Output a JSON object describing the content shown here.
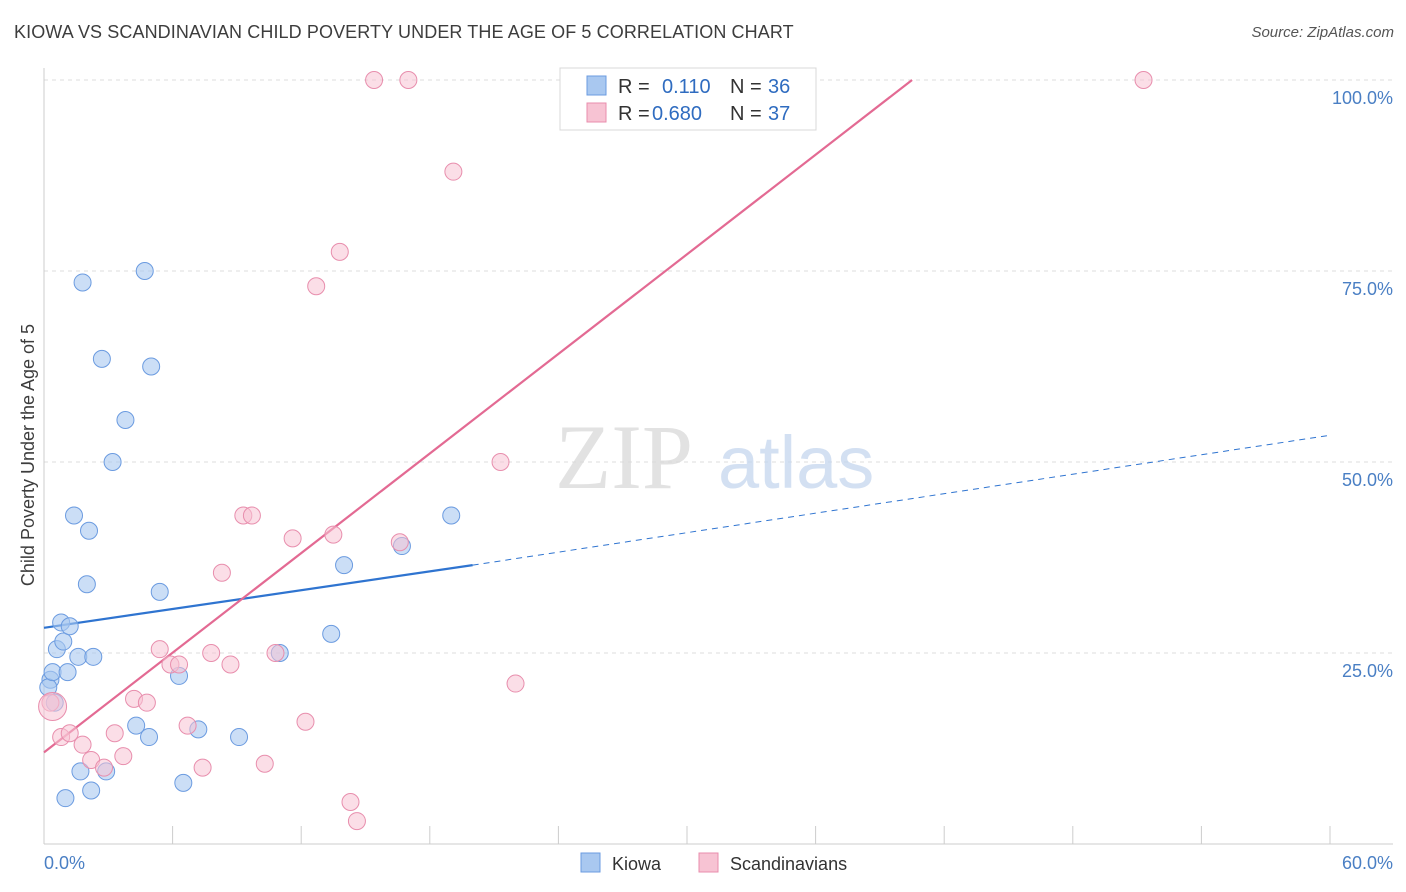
{
  "header": {
    "title": "KIOWA VS SCANDINAVIAN CHILD POVERTY UNDER THE AGE OF 5 CORRELATION CHART",
    "source": "Source: ZipAtlas.com"
  },
  "watermark": {
    "zip": "ZIP",
    "atlas": "atlas"
  },
  "colors": {
    "kiowa_fill": "#a9c8f0",
    "kiowa_stroke": "#6b9be0",
    "kiowa_line": "#2f74d0",
    "scand_fill": "#f7c3d3",
    "scand_stroke": "#e88ead",
    "scand_line": "#e36a93",
    "grid": "#dcdcdc",
    "axis_text": "#4a7fc4"
  },
  "legend": {
    "rows": [
      {
        "r_label": "R =",
        "r_value": "0.110",
        "n_label": "N =",
        "n_value": "36"
      },
      {
        "r_label": "R =",
        "r_value": "0.680",
        "n_label": "N =",
        "n_value": "37"
      }
    ]
  },
  "chart_data": {
    "type": "scatter",
    "title": "KIOWA VS SCANDINAVIAN CHILD POVERTY UNDER THE AGE OF 5 CORRELATION CHART",
    "xlabel": "",
    "ylabel": "Child Poverty Under the Age of 5",
    "xlim": [
      0,
      60
    ],
    "ylim": [
      0,
      100
    ],
    "x_tick_labels": [
      "0.0%",
      "60.0%"
    ],
    "y_tick_labels": [
      "100.0%",
      "75.0%",
      "50.0%",
      "25.0%"
    ],
    "y_tick_values": [
      100,
      75,
      50,
      25
    ],
    "grid": true,
    "legend_position": "bottom-center",
    "series": [
      {
        "name": "Kiowa",
        "r": 0.11,
        "n": 36,
        "points": [
          [
            0.3,
            21.5
          ],
          [
            0.2,
            20.5
          ],
          [
            0.4,
            22.5
          ],
          [
            0.5,
            18.5
          ],
          [
            0.6,
            25.5
          ],
          [
            0.8,
            29
          ],
          [
            0.9,
            26.5
          ],
          [
            1.1,
            22.5
          ],
          [
            1.2,
            28.5
          ],
          [
            1.4,
            43
          ],
          [
            1.6,
            24.5
          ],
          [
            1.7,
            9.5
          ],
          [
            1.8,
            73.5
          ],
          [
            2.0,
            34
          ],
          [
            2.1,
            41
          ],
          [
            2.2,
            7
          ],
          [
            2.3,
            24.5
          ],
          [
            2.7,
            63.5
          ],
          [
            2.9,
            9.5
          ],
          [
            3.2,
            50
          ],
          [
            3.8,
            55.5
          ],
          [
            4.3,
            15.5
          ],
          [
            4.7,
            75
          ],
          [
            4.9,
            14
          ],
          [
            5.0,
            62.5
          ],
          [
            5.4,
            33
          ],
          [
            6.3,
            22
          ],
          [
            6.5,
            8
          ],
          [
            7.2,
            15
          ],
          [
            9.1,
            14
          ],
          [
            11.0,
            25
          ],
          [
            13.4,
            27.5
          ],
          [
            14.0,
            36.5
          ],
          [
            16.7,
            39
          ],
          [
            19.0,
            43
          ],
          [
            1.0,
            6
          ]
        ],
        "trend": {
          "solid": [
            [
              0,
              28.3
            ],
            [
              20,
              36.5
            ]
          ],
          "dashed": [
            [
              20,
              36.5
            ],
            [
              60,
              53.5
            ]
          ]
        }
      },
      {
        "name": "Scandinavians",
        "r": 0.68,
        "n": 37,
        "points": [
          [
            0.3,
            18.5
          ],
          [
            0.8,
            14
          ],
          [
            1.2,
            14.5
          ],
          [
            1.8,
            13
          ],
          [
            2.2,
            11
          ],
          [
            2.8,
            10
          ],
          [
            3.3,
            14.5
          ],
          [
            3.7,
            11.5
          ],
          [
            4.2,
            19
          ],
          [
            4.8,
            18.5
          ],
          [
            5.4,
            25.5
          ],
          [
            5.9,
            23.5
          ],
          [
            6.3,
            23.5
          ],
          [
            6.7,
            15.5
          ],
          [
            7.4,
            10
          ],
          [
            7.8,
            25
          ],
          [
            8.3,
            35.5
          ],
          [
            8.7,
            23.5
          ],
          [
            9.3,
            43
          ],
          [
            9.7,
            43
          ],
          [
            10.3,
            10.5
          ],
          [
            10.8,
            25
          ],
          [
            11.6,
            40
          ],
          [
            12.2,
            16
          ],
          [
            12.7,
            73
          ],
          [
            13.5,
            40.5
          ],
          [
            13.8,
            77.5
          ],
          [
            14.3,
            5.5
          ],
          [
            14.6,
            3
          ],
          [
            15.4,
            100
          ],
          [
            16.6,
            39.5
          ],
          [
            17.0,
            100
          ],
          [
            19.1,
            88
          ],
          [
            21.3,
            50
          ],
          [
            22.0,
            21
          ],
          [
            51.3,
            100
          ],
          [
            0.4,
            18
          ]
        ],
        "trend": {
          "solid": [
            [
              0,
              12
            ],
            [
              40.5,
              100
            ]
          ]
        }
      }
    ]
  },
  "bottom_legend": {
    "items": [
      {
        "label": "Kiowa"
      },
      {
        "label": "Scandinavians"
      }
    ]
  }
}
